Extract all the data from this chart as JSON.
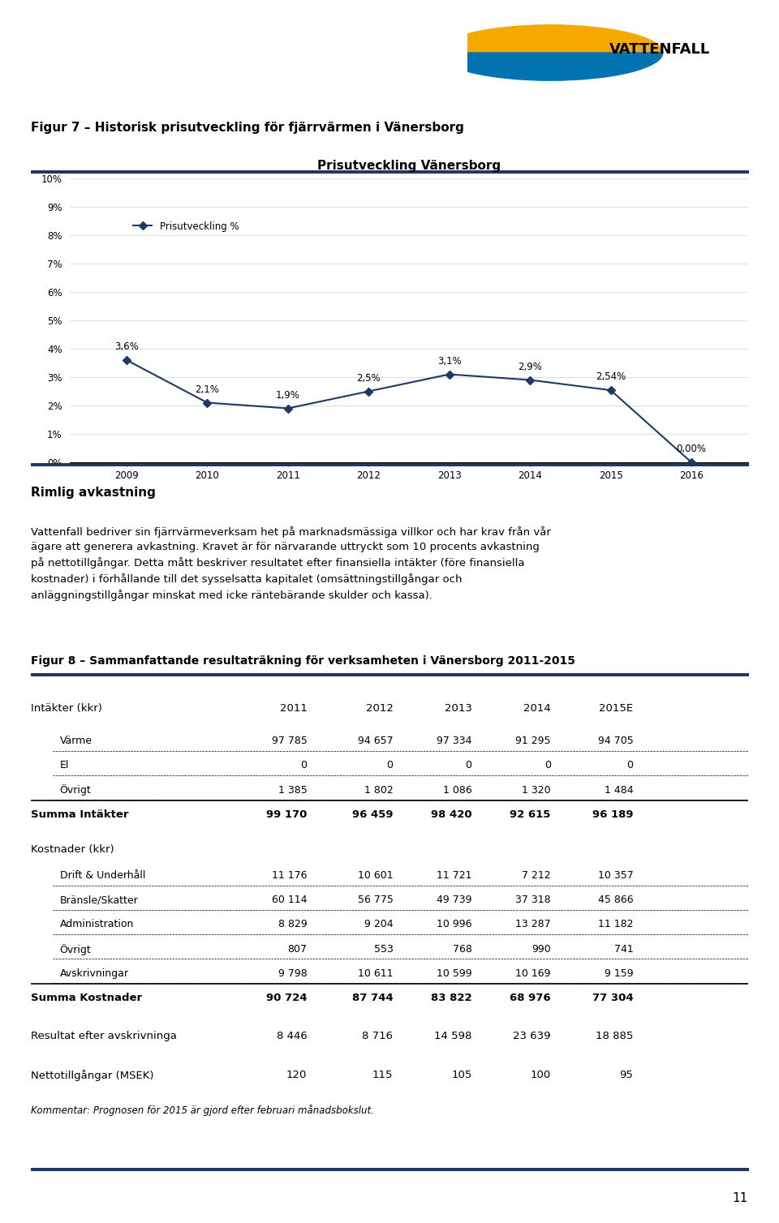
{
  "chart_title": "Prisutveckling Vänersborg",
  "fig7_title": "Figur 7 – Historisk prisutveckling för fjärrvärmen i Vänersborg",
  "years": [
    2009,
    2010,
    2011,
    2012,
    2013,
    2014,
    2015,
    2016
  ],
  "values": [
    3.6,
    2.1,
    1.9,
    2.5,
    3.1,
    2.9,
    2.54,
    0.0
  ],
  "labels": [
    "3,6%",
    "2,1%",
    "1,9%",
    "2,5%",
    "3,1%",
    "2,9%",
    "2,54%",
    "0,00%"
  ],
  "line_color": "#1F3864",
  "legend_label": "Prisutveckling %",
  "ylim_min": 0,
  "ylim_max": 10,
  "yticks": [
    0,
    1,
    2,
    3,
    4,
    5,
    6,
    7,
    8,
    9,
    10
  ],
  "ytick_labels": [
    "0%",
    "1%",
    "2%",
    "3%",
    "4%",
    "5%",
    "6%",
    "7%",
    "8%",
    "9%",
    "10%"
  ],
  "rimlig_title": "Rimlig avkastning",
  "rimlig_body_lines": [
    "Vattenfall bedriver sin fjärrvärmeverksam het på marknadsmässiga villkor och har krav från vår",
    "ägare att generera avkastning. Kravet är för närvarande uttryckt som 10 procents avkastning",
    "på nettotillgångar. Detta mått beskriver resultatet efter finansiella intäkter (före finansiella",
    "kostnader) i förhållande till det sysselsatta kapitalet (omsättningstillgångar och",
    "anläggningstillgångar minskat med icke räntebärande skulder och kassa)."
  ],
  "fig8_title": "Figur 8 – Sammanfattande resultaträkning för verksamheten i Vänersborg 2011-2015",
  "table_col_labels": [
    "",
    "2011",
    "2012",
    "2013",
    "2014",
    "2015E"
  ],
  "intakter_header": "Intäkter (kkr)",
  "intakter_rows": [
    [
      "Värme",
      "97 785",
      "94 657",
      "97 334",
      "91 295",
      "94 705"
    ],
    [
      "El",
      "0",
      "0",
      "0",
      "0",
      "0"
    ],
    [
      "Övrigt",
      "1 385",
      "1 802",
      "1 086",
      "1 320",
      "1 484"
    ]
  ],
  "summa_intakter": [
    "Summa Intäkter",
    "99 170",
    "96 459",
    "98 420",
    "92 615",
    "96 189"
  ],
  "kostnader_header": "Kostnader (kkr)",
  "kostnader_rows": [
    [
      "Drift & Underhåll",
      "11 176",
      "10 601",
      "11 721",
      "7 212",
      "10 357"
    ],
    [
      "Bränsle/Skatter",
      "60 114",
      "56 775",
      "49 739",
      "37 318",
      "45 866"
    ],
    [
      "Administration",
      "8 829",
      "9 204",
      "10 996",
      "13 287",
      "11 182"
    ],
    [
      "Övrigt",
      "807",
      "553",
      "768",
      "990",
      "741"
    ],
    [
      "Avskrivningar",
      "9 798",
      "10 611",
      "10 599",
      "10 169",
      "9 159"
    ]
  ],
  "summa_kostnader": [
    "Summa Kostnader",
    "90 724",
    "87 744",
    "83 822",
    "68 976",
    "77 304"
  ],
  "resultat_row": [
    "Resultat efter avskrivninga",
    "8 446",
    "8 716",
    "14 598",
    "23 639",
    "18 885"
  ],
  "netto_row": [
    "Nettotillgångar (MSEK)",
    "120",
    "115",
    "105",
    "100",
    "95"
  ],
  "kommentar": "Kommentar: Prognosen för 2015 är gjord efter februari månadsbokslut.",
  "page_number": "11",
  "header_line_color": "#1F3864",
  "background_color": "#ffffff",
  "vattenfall_text": "VATTENFALL"
}
